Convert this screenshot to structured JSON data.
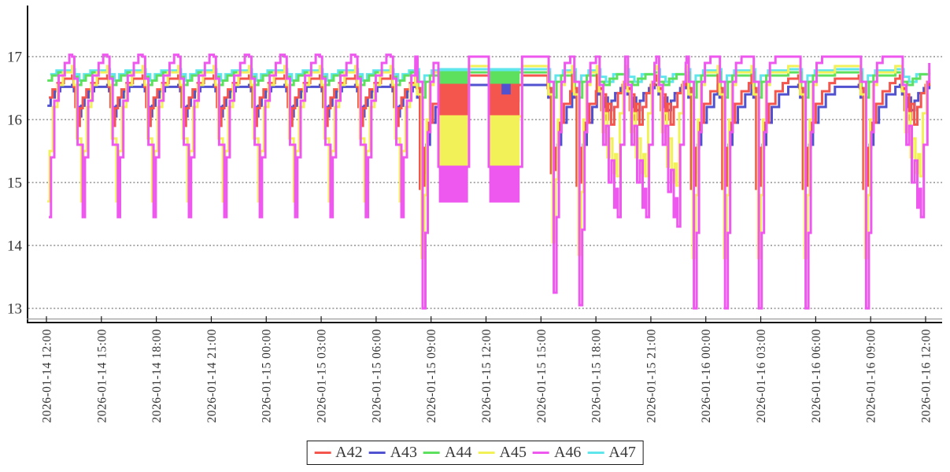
{
  "chart_data": {
    "type": "line",
    "title": "",
    "x_axis": {
      "label": "",
      "tick_interval_hours": 3,
      "span_hours": 48,
      "tick_labels": [
        "2026-01-14 12:00",
        "2026-01-14 15:00",
        "2026-01-14 18:00",
        "2026-01-14 21:00",
        "2026-01-15 00:00",
        "2026-01-15 03:00",
        "2026-01-15 06:00",
        "2026-01-15 09:00",
        "2026-01-15 12:00",
        "2026-01-15 15:00",
        "2026-01-15 18:00",
        "2026-01-15 21:00",
        "2026-01-16 00:00",
        "2026-01-16 03:00",
        "2026-01-16 06:00",
        "2026-01-16 09:00",
        "2026-01-16 12:00"
      ]
    },
    "y_axis": {
      "label": "",
      "ticks": [
        13,
        14,
        15,
        16,
        17
      ],
      "min": 12.75,
      "max": 17.55,
      "grid": "dotted"
    },
    "legend_position": "bottom-center",
    "series": [
      {
        "name": "A42",
        "color": "#f4554d"
      },
      {
        "name": "A43",
        "color": "#5152d0"
      },
      {
        "name": "A44",
        "color": "#5de05d"
      },
      {
        "name": "A45",
        "color": "#f2f158"
      },
      {
        "name": "A46",
        "color": "#ee58ee"
      },
      {
        "name": "A47",
        "color": "#5fe6ec"
      }
    ],
    "draw_order": [
      "A47",
      "A44",
      "A43",
      "A42",
      "A45",
      "A46"
    ],
    "plateaus": {
      "A42": 16.7,
      "A43": 16.55,
      "A44": 16.75,
      "A45": 16.85,
      "A46": 17.0,
      "A47": 16.8
    },
    "dv_threshold": 15.5,
    "clip_hours": 48.2,
    "templates": {
      "normal": {
        "A42": [
          [
            0,
            16.7
          ],
          [
            0.08,
            16.52
          ],
          [
            0.18,
            16.2
          ],
          [
            0.3,
            15.9
          ],
          [
            0.42,
            16.18
          ],
          [
            0.58,
            16.35
          ],
          [
            0.78,
            16.48
          ],
          [
            1.05,
            16.58
          ],
          [
            1.4,
            16.65
          ],
          [
            1.93,
            16.7
          ]
        ],
        "A43": [
          [
            0,
            16.55
          ],
          [
            0.1,
            16.45
          ],
          [
            0.25,
            16.2
          ],
          [
            0.37,
            16.05
          ],
          [
            0.5,
            16.22
          ],
          [
            0.68,
            16.35
          ],
          [
            0.9,
            16.45
          ],
          [
            1.2,
            16.52
          ],
          [
            1.93,
            16.55
          ]
        ],
        "A44": [
          [
            0,
            16.75
          ],
          [
            0.12,
            16.68
          ],
          [
            0.3,
            16.55
          ],
          [
            0.5,
            16.62
          ],
          [
            0.75,
            16.7
          ],
          [
            1.1,
            16.75
          ],
          [
            1.93,
            16.75
          ]
        ],
        "A45": [
          [
            0,
            16.85
          ],
          [
            0.1,
            16.55
          ],
          [
            0.25,
            15.7
          ],
          [
            0.5,
            14.7
          ],
          [
            0.62,
            15.5
          ],
          [
            0.8,
            16.2
          ],
          [
            1.05,
            16.55
          ],
          [
            1.35,
            16.75
          ],
          [
            1.93,
            16.85
          ]
        ],
        "A46": [
          [
            0,
            17.0
          ],
          [
            0.12,
            16.65
          ],
          [
            0.3,
            15.6
          ],
          [
            0.58,
            14.45
          ],
          [
            0.7,
            15.4
          ],
          [
            0.88,
            16.3
          ],
          [
            1.12,
            16.7
          ],
          [
            1.45,
            16.9
          ],
          [
            1.7,
            17.03
          ],
          [
            1.93,
            17.0
          ]
        ],
        "A47": [
          [
            0,
            16.8
          ],
          [
            0.15,
            16.72
          ],
          [
            0.4,
            16.62
          ],
          [
            0.65,
            16.72
          ],
          [
            1.0,
            16.78
          ],
          [
            1.93,
            16.8
          ]
        ]
      },
      "deep": {
        "A42": [
          [
            0,
            16.7
          ],
          [
            0.07,
            16.5
          ],
          [
            0.25,
            14.9
          ],
          [
            0.38,
            14.95
          ],
          [
            0.5,
            15.55
          ],
          [
            0.68,
            15.95
          ],
          [
            0.95,
            16.25
          ],
          [
            1.3,
            16.45
          ],
          [
            1.7,
            16.58
          ],
          [
            2.0,
            16.65
          ]
        ],
        "A43": [
          [
            0,
            16.55
          ],
          [
            0.1,
            16.35
          ],
          [
            0.3,
            14.95
          ],
          [
            0.45,
            15.15
          ],
          [
            0.6,
            15.6
          ],
          [
            0.8,
            15.95
          ],
          [
            1.1,
            16.2
          ],
          [
            1.5,
            16.4
          ],
          [
            2.0,
            16.52
          ]
        ],
        "A44": [
          [
            0,
            16.75
          ],
          [
            0.15,
            16.5
          ],
          [
            0.35,
            16.35
          ],
          [
            0.55,
            16.6
          ],
          [
            0.8,
            16.7
          ],
          [
            2.0,
            16.75
          ]
        ],
        "A45": [
          [
            0,
            16.85
          ],
          [
            0.1,
            16.4
          ],
          [
            0.35,
            13.8
          ],
          [
            0.5,
            14.8
          ],
          [
            0.62,
            16.0
          ],
          [
            0.78,
            16.55
          ],
          [
            1.0,
            16.75
          ],
          [
            2.0,
            16.85
          ]
        ],
        "A46": [
          [
            0,
            17.0
          ],
          [
            0.12,
            16.6
          ],
          [
            0.4,
            13.0
          ],
          [
            0.55,
            14.2
          ],
          [
            0.68,
            15.8
          ],
          [
            0.82,
            16.6
          ],
          [
            1.0,
            16.9
          ],
          [
            1.3,
            17.0
          ],
          [
            2.0,
            17.0
          ]
        ],
        "A47": [
          [
            0,
            16.8
          ],
          [
            0.2,
            16.6
          ],
          [
            0.5,
            16.7
          ],
          [
            0.9,
            16.78
          ],
          [
            2.0,
            16.8
          ]
        ]
      },
      "fan": {
        "A42": [
          [
            0,
            16.7
          ],
          [
            0.1,
            16.5
          ],
          [
            0.25,
            16.15
          ],
          [
            0.35,
            16.4
          ],
          [
            0.5,
            16.0
          ],
          [
            0.62,
            16.25
          ],
          [
            0.78,
            15.92
          ],
          [
            0.95,
            16.2
          ],
          [
            1.15,
            16.42
          ],
          [
            1.4,
            16.55
          ],
          [
            1.6,
            16.62
          ]
        ],
        "A43": [
          [
            0,
            16.55
          ],
          [
            0.12,
            16.4
          ],
          [
            0.3,
            16.2
          ],
          [
            0.45,
            16.35
          ],
          [
            0.6,
            16.15
          ],
          [
            0.8,
            16.3
          ],
          [
            1.0,
            16.42
          ],
          [
            1.3,
            16.5
          ],
          [
            1.6,
            16.55
          ]
        ],
        "A44": [
          [
            0,
            16.75
          ],
          [
            0.15,
            16.6
          ],
          [
            0.4,
            16.55
          ],
          [
            0.7,
            16.65
          ],
          [
            1.1,
            16.72
          ],
          [
            1.6,
            16.75
          ]
        ],
        "A45": [
          [
            0,
            16.85
          ],
          [
            0.12,
            16.45
          ],
          [
            0.3,
            15.8
          ],
          [
            0.42,
            16.1
          ],
          [
            0.58,
            15.4
          ],
          [
            0.7,
            15.7
          ],
          [
            0.85,
            15.15
          ],
          [
            1.0,
            15.45
          ],
          [
            1.1,
            15.1
          ],
          [
            1.25,
            16.1
          ],
          [
            1.45,
            16.6
          ],
          [
            1.6,
            16.8
          ]
        ],
        "A46": [
          [
            0,
            17.0
          ],
          [
            0.15,
            16.55
          ],
          [
            0.35,
            15.6
          ],
          [
            0.5,
            15.9
          ],
          [
            0.65,
            15.0
          ],
          [
            0.8,
            15.35
          ],
          [
            0.95,
            14.6
          ],
          [
            1.05,
            14.9
          ],
          [
            1.15,
            14.45
          ],
          [
            1.3,
            15.6
          ],
          [
            1.5,
            16.6
          ],
          [
            1.6,
            16.9
          ]
        ],
        "A47": [
          [
            0,
            16.8
          ],
          [
            0.2,
            16.68
          ],
          [
            0.5,
            16.6
          ],
          [
            0.9,
            16.72
          ],
          [
            1.6,
            16.8
          ]
        ]
      }
    },
    "band_levels": {
      "A42": [
        16.0,
        16.55
      ],
      "A43": [
        16.3,
        16.55
      ],
      "A44": [
        16.55,
        16.75
      ],
      "A45": [
        15.2,
        16.05
      ],
      "A46": [
        14.7,
        15.25
      ],
      "A47": [
        16.65,
        16.8
      ]
    },
    "cycles": [
      {
        "type": "normal",
        "t": -0.45
      },
      {
        "type": "normal",
        "t": 1.4
      },
      {
        "type": "normal",
        "t": 3.32
      },
      {
        "type": "normal",
        "t": 5.27
      },
      {
        "type": "normal",
        "t": 7.2
      },
      {
        "type": "normal",
        "t": 9.13
      },
      {
        "type": "normal",
        "t": 11.07
      },
      {
        "type": "normal",
        "t": 13.0
      },
      {
        "type": "normal",
        "t": 14.93
      },
      {
        "type": "normal",
        "t": 16.86
      },
      {
        "type": "normal",
        "t": 18.8
      },
      {
        "type": "deep",
        "t": 20.14
      },
      {
        "type": "band",
        "t0": 21.4,
        "t1": 22.95
      },
      {
        "type": "band",
        "t0": 24.15,
        "t1": 25.85,
        "mid": {
          "A42": [
            16.0,
            16.38
          ]
        }
      },
      {
        "type": "deep",
        "t": 27.3,
        "dv": 0.25
      },
      {
        "type": "deep",
        "t": 28.7,
        "dv": 0.05
      },
      {
        "type": "fan",
        "t": 30.05
      },
      {
        "type": "fan",
        "t": 31.6
      },
      {
        "type": "fan",
        "t": 33.3,
        "dv": -0.15
      },
      {
        "type": "deep",
        "t": 34.95
      },
      {
        "type": "deep",
        "t": 36.65
      },
      {
        "type": "deep",
        "t": 38.5
      },
      {
        "type": "deep",
        "t": 41.05
      },
      {
        "type": "deep",
        "t": 44.35
      },
      {
        "type": "fan",
        "t": 46.6
      }
    ]
  }
}
